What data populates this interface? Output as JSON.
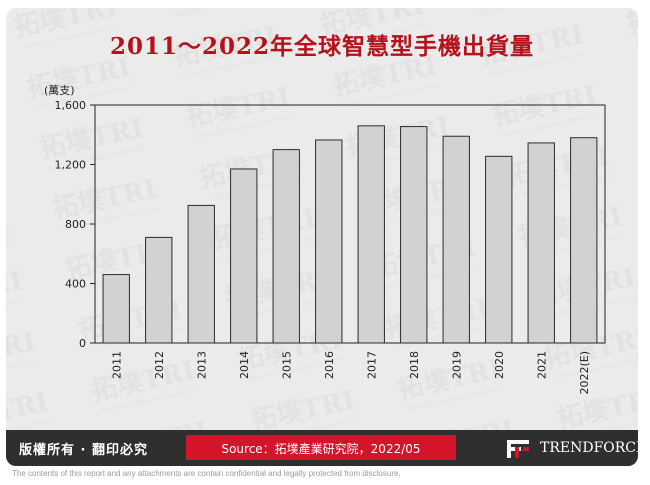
{
  "title": "2011～2022年全球智慧型手機出貨量",
  "footer": {
    "copyright": "版權所有 · 翻印必究",
    "source": "Source：拓墣產業研究院，2022/05",
    "brand": "TRENDFORCE"
  },
  "disclaimer": "The contents of this report and any attachments are contain confidential and legally protected from disclosure.",
  "colors": {
    "bar": "#d2d2d2",
    "bar_stroke": "#2b2b2b",
    "title": "#b5121b",
    "source_box": "#d3142a",
    "footer_bg": "#2f2f2f"
  },
  "chart_data": {
    "type": "bar",
    "unit_label": "(萬支)",
    "categories": [
      "2011",
      "2012",
      "2013",
      "2014",
      "2015",
      "2016",
      "2017",
      "2018",
      "2019",
      "2020",
      "2021",
      "2022(E)"
    ],
    "values": [
      460,
      710,
      925,
      1170,
      1300,
      1365,
      1460,
      1455,
      1390,
      1255,
      1345,
      1380
    ],
    "yticks": [
      "0",
      "400",
      "800",
      "1,200",
      "1,600"
    ],
    "ylim": [
      0,
      1600
    ],
    "grid": false,
    "legend": "none"
  }
}
